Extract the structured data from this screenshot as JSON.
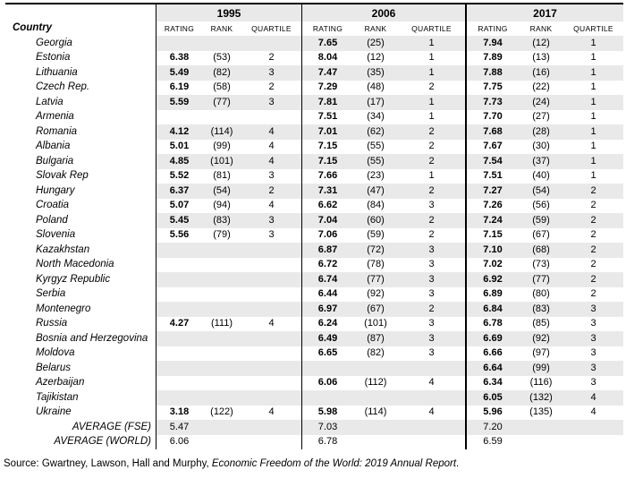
{
  "table": {
    "country_header": "Country",
    "year_headers": [
      "1995",
      "2006",
      "2017"
    ],
    "sub_headers": [
      "RATING",
      "RANK",
      "QUARTILE"
    ],
    "rows": [
      {
        "country": "Georgia",
        "y1995": [
          "",
          "",
          ""
        ],
        "y2006": [
          "7.65",
          "(25)",
          "1"
        ],
        "y2017": [
          "7.94",
          "(12)",
          "1"
        ]
      },
      {
        "country": "Estonia",
        "y1995": [
          "6.38",
          "(53)",
          "2"
        ],
        "y2006": [
          "8.04",
          "(12)",
          "1"
        ],
        "y2017": [
          "7.89",
          "(13)",
          "1"
        ]
      },
      {
        "country": "Lithuania",
        "y1995": [
          "5.49",
          "(82)",
          "3"
        ],
        "y2006": [
          "7.47",
          "(35)",
          "1"
        ],
        "y2017": [
          "7.88",
          "(16)",
          "1"
        ]
      },
      {
        "country": "Czech Rep.",
        "y1995": [
          "6.19",
          "(58)",
          "2"
        ],
        "y2006": [
          "7.29",
          "(48)",
          "2"
        ],
        "y2017": [
          "7.75",
          "(22)",
          "1"
        ]
      },
      {
        "country": "Latvia",
        "y1995": [
          "5.59",
          "(77)",
          "3"
        ],
        "y2006": [
          "7.81",
          "(17)",
          "1"
        ],
        "y2017": [
          "7.73",
          "(24)",
          "1"
        ]
      },
      {
        "country": "Armenia",
        "y1995": [
          "",
          "",
          ""
        ],
        "y2006": [
          "7.51",
          "(34)",
          "1"
        ],
        "y2017": [
          "7.70",
          "(27)",
          "1"
        ]
      },
      {
        "country": "Romania",
        "y1995": [
          "4.12",
          "(114)",
          "4"
        ],
        "y2006": [
          "7.01",
          "(62)",
          "2"
        ],
        "y2017": [
          "7.68",
          "(28)",
          "1"
        ]
      },
      {
        "country": "Albania",
        "y1995": [
          "5.01",
          "(99)",
          "4"
        ],
        "y2006": [
          "7.15",
          "(55)",
          "2"
        ],
        "y2017": [
          "7.67",
          "(30)",
          "1"
        ]
      },
      {
        "country": "Bulgaria",
        "y1995": [
          "4.85",
          "(101)",
          "4"
        ],
        "y2006": [
          "7.15",
          "(55)",
          "2"
        ],
        "y2017": [
          "7.54",
          "(37)",
          "1"
        ]
      },
      {
        "country": "Slovak Rep",
        "y1995": [
          "5.52",
          "(81)",
          "3"
        ],
        "y2006": [
          "7.66",
          "(23)",
          "1"
        ],
        "y2017": [
          "7.51",
          "(40)",
          "1"
        ]
      },
      {
        "country": "Hungary",
        "y1995": [
          "6.37",
          "(54)",
          "2"
        ],
        "y2006": [
          "7.31",
          "(47)",
          "2"
        ],
        "y2017": [
          "7.27",
          "(54)",
          "2"
        ]
      },
      {
        "country": "Croatia",
        "y1995": [
          "5.07",
          "(94)",
          "4"
        ],
        "y2006": [
          "6.62",
          "(84)",
          "3"
        ],
        "y2017": [
          "7.26",
          "(56)",
          "2"
        ]
      },
      {
        "country": "Poland",
        "y1995": [
          "5.45",
          "(83)",
          "3"
        ],
        "y2006": [
          "7.04",
          "(60)",
          "2"
        ],
        "y2017": [
          "7.24",
          "(59)",
          "2"
        ]
      },
      {
        "country": "Slovenia",
        "y1995": [
          "5.56",
          "(79)",
          "3"
        ],
        "y2006": [
          "7.06",
          "(59)",
          "2"
        ],
        "y2017": [
          "7.15",
          "(67)",
          "2"
        ]
      },
      {
        "country": "Kazakhstan",
        "y1995": [
          "",
          "",
          ""
        ],
        "y2006": [
          "6.87",
          "(72)",
          "3"
        ],
        "y2017": [
          "7.10",
          "(68)",
          "2"
        ]
      },
      {
        "country": "North Macedonia",
        "y1995": [
          "",
          "",
          ""
        ],
        "y2006": [
          "6.72",
          "(78)",
          "3"
        ],
        "y2017": [
          "7.02",
          "(73)",
          "2"
        ]
      },
      {
        "country": "Kyrgyz Republic",
        "y1995": [
          "",
          "",
          ""
        ],
        "y2006": [
          "6.74",
          "(77)",
          "3"
        ],
        "y2017": [
          "6.92",
          "(77)",
          "2"
        ]
      },
      {
        "country": "Serbia",
        "y1995": [
          "",
          "",
          ""
        ],
        "y2006": [
          "6.44",
          "(92)",
          "3"
        ],
        "y2017": [
          "6.89",
          "(80)",
          "2"
        ]
      },
      {
        "country": "Montenegro",
        "y1995": [
          "",
          "",
          ""
        ],
        "y2006": [
          "6.97",
          "(67)",
          "2"
        ],
        "y2017": [
          "6.84",
          "(83)",
          "3"
        ]
      },
      {
        "country": "Russia",
        "y1995": [
          "4.27",
          "(111)",
          "4"
        ],
        "y2006": [
          "6.24",
          "(101)",
          "3"
        ],
        "y2017": [
          "6.78",
          "(85)",
          "3"
        ]
      },
      {
        "country": "Bosnia and Herzegovina",
        "y1995": [
          "",
          "",
          ""
        ],
        "y2006": [
          "6.49",
          "(87)",
          "3"
        ],
        "y2017": [
          "6.69",
          "(92)",
          "3"
        ]
      },
      {
        "country": "Moldova",
        "y1995": [
          "",
          "",
          ""
        ],
        "y2006": [
          "6.65",
          "(82)",
          "3"
        ],
        "y2017": [
          "6.66",
          "(97)",
          "3"
        ]
      },
      {
        "country": "Belarus",
        "y1995": [
          "",
          "",
          ""
        ],
        "y2006": [
          "",
          "",
          ""
        ],
        "y2017": [
          "6.64",
          "(99)",
          "3"
        ]
      },
      {
        "country": "Azerbaijan",
        "y1995": [
          "",
          "",
          ""
        ],
        "y2006": [
          "6.06",
          "(112)",
          "4"
        ],
        "y2017": [
          "6.34",
          "(116)",
          "3"
        ]
      },
      {
        "country": "Tajikistan",
        "y1995": [
          "",
          "",
          ""
        ],
        "y2006": [
          "",
          "",
          ""
        ],
        "y2017": [
          "6.05",
          "(132)",
          "4"
        ]
      },
      {
        "country": "Ukraine",
        "y1995": [
          "3.18",
          "(122)",
          "4"
        ],
        "y2006": [
          "5.98",
          "(114)",
          "4"
        ],
        "y2017": [
          "5.96",
          "(135)",
          "4"
        ]
      }
    ],
    "averages": [
      {
        "label": "AVERAGE (FSE)",
        "y1995": "5.47",
        "y2006": "7.03",
        "y2017": "7.20"
      },
      {
        "label": "AVERAGE (WORLD)",
        "y1995": "6.06",
        "y2006": "6.78",
        "y2017": "6.59"
      }
    ]
  },
  "source": {
    "prefix": "Source: Gwartney, Lawson, Hall and Murphy, ",
    "citation": "Economic Freedom of the World: 2019 Annual Report",
    "suffix": "."
  },
  "colors": {
    "band": "#e9e9e9",
    "border": "#000000"
  }
}
